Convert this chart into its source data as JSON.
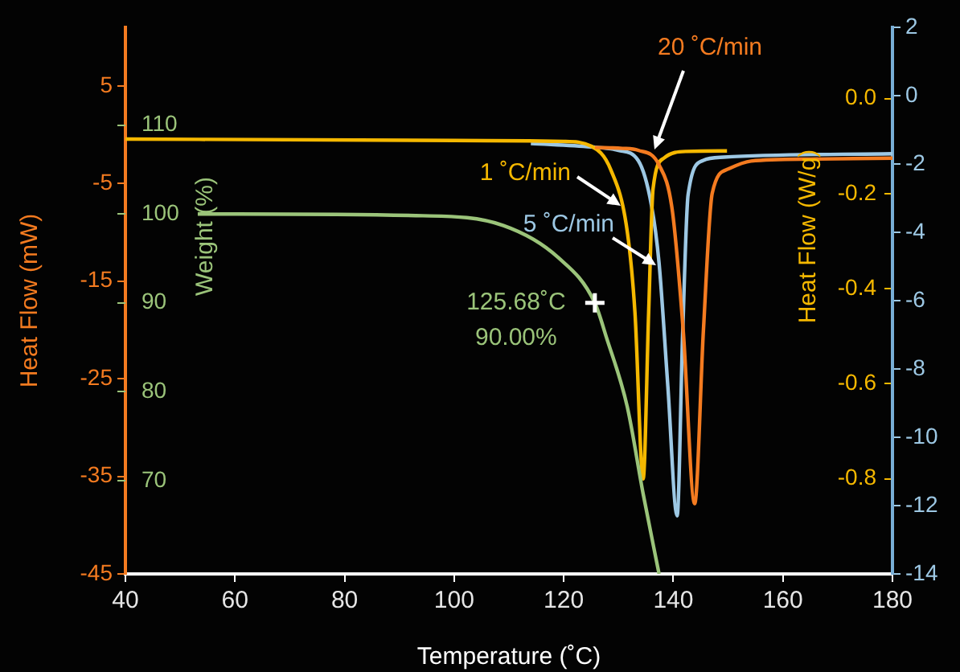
{
  "chart_data": [
    {
      "type": "line",
      "xlabel": "Temperature (˚C)",
      "ylabel": "Heat Flow (mW)",
      "y2label": "Heat Flow (W/g)",
      "xlim": [
        40,
        180
      ],
      "xticks": [
        40,
        60,
        80,
        100,
        120,
        140,
        160,
        180
      ],
      "ylim": [
        -45,
        11
      ],
      "yticks": [
        -45,
        -35,
        -25,
        -15,
        -5,
        5
      ],
      "y2lim": [
        -1,
        0.15
      ],
      "y2ticks": [
        {
          "value": -0.8,
          "label": "-0.8"
        },
        {
          "value": -0.6,
          "label": "-0.6"
        },
        {
          "value": -0.4,
          "label": "-0.4"
        },
        {
          "value": -0.2,
          "label": "-0.2"
        },
        {
          "value": 0,
          "label": "0.0"
        }
      ],
      "y3lim": [
        -14,
        2
      ],
      "y3ticks": [
        -14,
        -12,
        -10,
        -8,
        -6,
        -4,
        -2,
        0,
        2
      ],
      "series": [
        {
          "name": "20 ˚C/min",
          "color": "#f47b20",
          "axis": "y",
          "x": [
            125.7,
            130.7,
            133.6,
            137.4,
            139.8,
            141.8,
            143.9,
            145.5,
            147.1,
            150.1,
            154.2,
            165,
            180
          ],
          "values": [
            -1.3,
            -1.4,
            -1.6,
            -3.1,
            -7.7,
            -20,
            -37.8,
            -20,
            -6.0,
            -3.5,
            -2.7,
            -2.5,
            -2.4
          ]
        },
        {
          "name": "1 ˚C/min",
          "color": "#f5b800",
          "axis": "y2",
          "x": [
            40,
            100,
            120,
            125,
            128.6,
            131.6,
            133,
            134.5,
            135.5,
            136.3,
            138.3,
            142.4,
            149.8
          ],
          "values": [
            -0.085,
            -0.088,
            -0.09,
            -0.1,
            -0.15,
            -0.28,
            -0.45,
            -0.8,
            -0.45,
            -0.19,
            -0.125,
            -0.111,
            -0.11
          ]
        },
        {
          "name": "5 ˚C/min",
          "color": "#9dc8e4",
          "axis": "y3",
          "x": [
            114,
            125,
            130,
            133.6,
            136,
            137.4,
            139,
            140.7,
            141.7,
            142.7,
            145.4,
            149.2,
            180
          ],
          "values": [
            -1.4,
            -1.5,
            -1.6,
            -1.9,
            -3.2,
            -4.9,
            -8.5,
            -12.3,
            -7,
            -2.9,
            -1.9,
            -1.8,
            -1.7
          ]
        }
      ],
      "marker": "none",
      "line_style": "solid",
      "grid": false,
      "legend": false
    },
    {
      "type": "line",
      "ylabel": "Weight (%)",
      "tick_labels": "y",
      "xlim": [
        40,
        180
      ],
      "ylim": [
        59.5,
        121
      ],
      "yticks": [
        70,
        80,
        90,
        100,
        110
      ],
      "series": [
        {
          "color": "#9bc47a",
          "x": [
            53.2,
            94.3,
            109,
            119,
            125.68,
            127.8,
            131.6,
            134.5,
            137.4
          ],
          "values": [
            100,
            99.8,
            98.7,
            95.1,
            90,
            86.1,
            78.3,
            68.5,
            59.5
          ]
        }
      ],
      "annotations": [
        {
          "text": "125.68˚C\n90.00%",
          "x": 125.68,
          "y": 90
        }
      ],
      "marker": "none",
      "line_style": "solid",
      "grid": false,
      "legend": false
    }
  ]
}
